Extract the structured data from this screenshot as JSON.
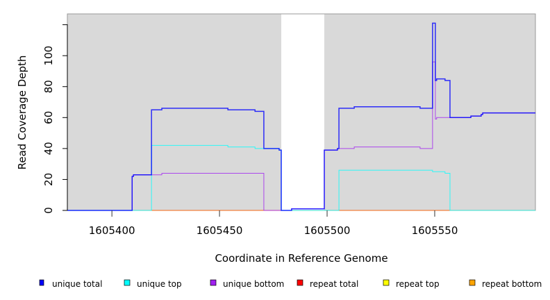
{
  "chart_data": {
    "type": "line",
    "title": "",
    "xlabel": "Coordinate in Reference Genome",
    "ylabel": "Read Coverage Depth",
    "xlim": [
      1605379.3,
      1605596.8
    ],
    "ylim": [
      0,
      127
    ],
    "x_ticks": [
      1605400,
      1605450,
      1605500,
      1605550
    ],
    "x_tick_labels": [
      "1605400",
      "1605450",
      "1605500",
      "1605550"
    ],
    "y_ticks": [
      0,
      20,
      40,
      60,
      80,
      100,
      120
    ],
    "y_tick_labels": [
      "0",
      "20",
      "40",
      "60",
      "80",
      "100",
      ""
    ],
    "shaded_regions": [
      [
        1605379.3,
        1605478.7
      ],
      [
        1605498.7,
        1605596.8
      ]
    ],
    "step_style": "y holds from each x until next x",
    "series": [
      {
        "name": "unique total",
        "color": "#0000ff",
        "steps": [
          [
            1605379.3,
            0
          ],
          [
            1605409.4,
            22
          ],
          [
            1605410,
            23
          ],
          [
            1605418.4,
            65
          ],
          [
            1605423.2,
            66
          ],
          [
            1605453.9,
            65
          ],
          [
            1605466.5,
            64
          ],
          [
            1605470.6,
            40
          ],
          [
            1605477.7,
            39
          ],
          [
            1605478.7,
            0
          ],
          [
            1605483.5,
            1
          ],
          [
            1605498.7,
            39
          ],
          [
            1605504.8,
            40
          ],
          [
            1605505.5,
            66
          ],
          [
            1605512.6,
            67
          ],
          [
            1605543.2,
            66
          ],
          [
            1605549,
            121
          ],
          [
            1605550.3,
            84
          ],
          [
            1605550.9,
            85
          ],
          [
            1605554.8,
            84
          ],
          [
            1605557.1,
            60
          ],
          [
            1605566.8,
            61
          ],
          [
            1605571.6,
            62
          ],
          [
            1605572.3,
            63
          ],
          [
            1605596.8,
            63
          ]
        ]
      },
      {
        "name": "unique top",
        "color": "#00ffff",
        "steps": [
          [
            1605379.3,
            0
          ],
          [
            1605418.4,
            42
          ],
          [
            1605453.9,
            41
          ],
          [
            1605466.5,
            40
          ],
          [
            1605477.7,
            39
          ],
          [
            1605478.7,
            0
          ],
          [
            1605505.5,
            26
          ],
          [
            1605549,
            25
          ],
          [
            1605554.8,
            24
          ],
          [
            1605557.1,
            0
          ],
          [
            1605596.8,
            0
          ]
        ]
      },
      {
        "name": "unique bottom",
        "color": "#a020f0",
        "steps": [
          [
            1605379.3,
            0
          ],
          [
            1605409.4,
            22
          ],
          [
            1605410,
            23
          ],
          [
            1605423.2,
            24
          ],
          [
            1605470.6,
            0
          ],
          [
            1605483.5,
            1
          ],
          [
            1605498.7,
            39
          ],
          [
            1605504.8,
            40
          ],
          [
            1605512.6,
            41
          ],
          [
            1605543.2,
            40
          ],
          [
            1605549,
            96
          ],
          [
            1605550.3,
            59
          ],
          [
            1605550.9,
            60
          ],
          [
            1605566.8,
            61
          ],
          [
            1605571.6,
            62
          ],
          [
            1605572.3,
            63
          ],
          [
            1605596.8,
            63
          ]
        ]
      },
      {
        "name": "repeat total",
        "color": "#ff0000",
        "steps": [
          [
            1605379.3,
            0
          ],
          [
            1605596.8,
            0
          ]
        ]
      },
      {
        "name": "repeat top",
        "color": "#ffff00",
        "steps": [
          [
            1605379.3,
            0
          ],
          [
            1605596.8,
            0
          ]
        ]
      },
      {
        "name": "repeat bottom",
        "color": "#ffa500",
        "steps": [
          [
            1605379.3,
            0
          ],
          [
            1605596.8,
            0
          ]
        ]
      }
    ],
    "legend_placement": "bottom",
    "colors": {
      "shade": "#d9d9d9",
      "background": "#ffffff"
    }
  }
}
